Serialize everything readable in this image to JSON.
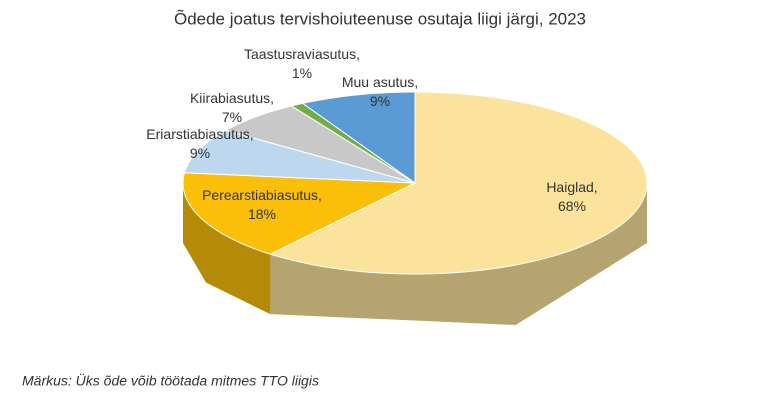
{
  "chart_data": {
    "type": "pie3d",
    "title": "Õdede joatus tervishoiuteenuse osutaja liigi järgi, 2023",
    "categories": [
      "Haiglad,",
      "Perearstiabiasutus,",
      "Eriarstiabiasutus,",
      "Kiirabiasutus,",
      "Taastusraviasutus,",
      "Muu asutus,"
    ],
    "values": [
      68,
      18,
      9,
      7,
      1,
      9
    ],
    "value_labels": [
      "68%",
      "18%",
      "9%",
      "7%",
      "1%",
      "9%"
    ],
    "colors": [
      "#fbe39b",
      "#fbbf0a",
      "#bdd7ee",
      "#c8c8c8",
      "#70ad47",
      "#5b9bd5"
    ],
    "note": "Märkus: Üks õde võib töötada mitmes TTO liigis"
  }
}
